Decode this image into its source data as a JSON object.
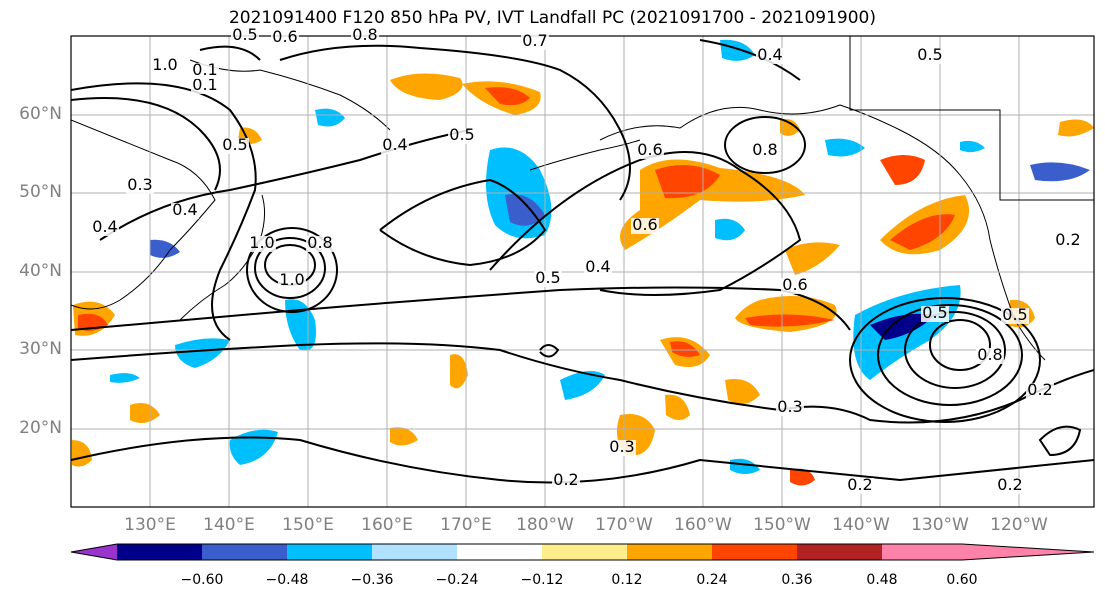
{
  "title": "2021091400 F120 850 hPa PV, IVT Landfall PC (2021091700 - 2021091900)",
  "map": {
    "lat_labels": [
      "60°N",
      "50°N",
      "40°N",
      "30°N",
      "20°N"
    ],
    "lon_labels": [
      "130°E",
      "140°E",
      "150°E",
      "160°E",
      "170°E",
      "180°W",
      "170°W",
      "160°W",
      "150°W",
      "140°W",
      "130°W",
      "120°W"
    ],
    "contour_labels": [
      "1.0",
      "0.6",
      "0.8",
      "0.7",
      "0.4",
      "0.5",
      "0.1",
      "0.4",
      "0.5",
      "0.5",
      "0.3",
      "0.4",
      "0.4",
      "0.6",
      "0.8",
      "1.0",
      "0.8",
      "1.0",
      "0.5",
      "0.4",
      "0.6",
      "0.6",
      "0.5",
      "0.2",
      "0.8",
      "0.5",
      "0.3",
      "0.3",
      "0.2",
      "0.2",
      "0.2",
      "0.2",
      "0.1",
      "0.5"
    ]
  },
  "colorbar": {
    "colors": [
      "#9a32cd",
      "#00008b",
      "#3a5fcd",
      "#00bfff",
      "#b0e2ff",
      "#ffffff",
      "#ffec8b",
      "#ffa500",
      "#ff4500",
      "#b22222",
      "#ff82ab"
    ],
    "tick_labels": [
      "−0.60",
      "−0.48",
      "−0.36",
      "−0.24",
      "−0.12",
      "0.12",
      "0.24",
      "0.36",
      "0.48",
      "0.60"
    ]
  }
}
